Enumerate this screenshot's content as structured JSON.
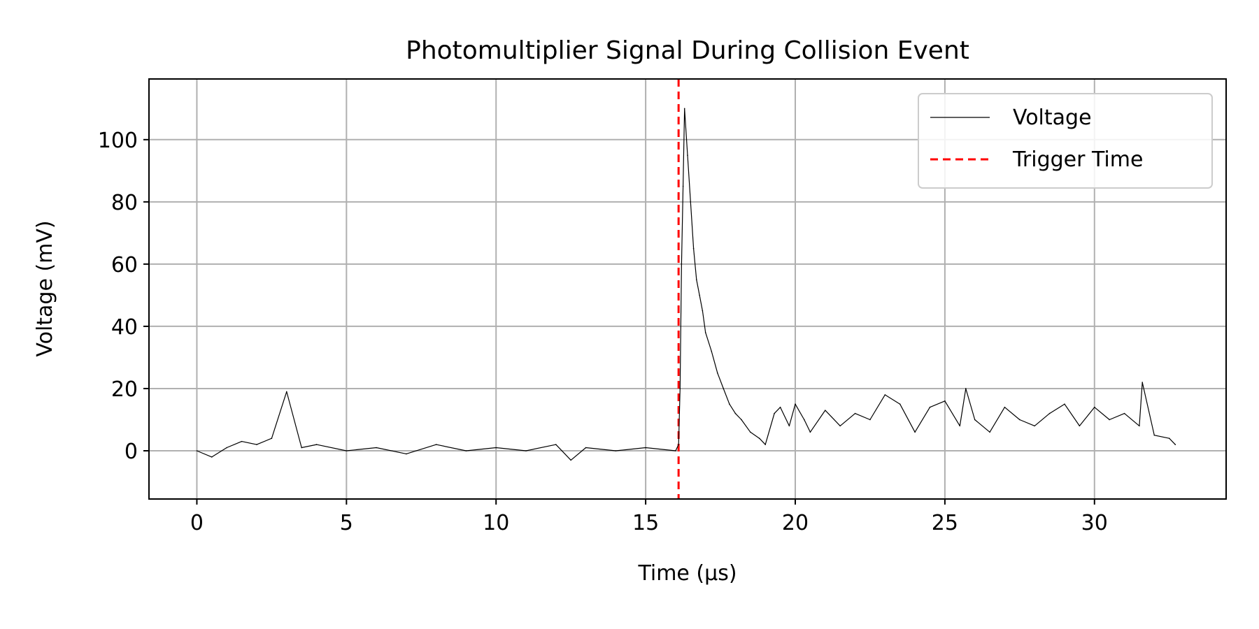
{
  "chart_data": {
    "type": "line",
    "title": "Photomultiplier Signal During Collision Event",
    "xlabel": "Time (μs)",
    "ylabel": "Voltage (mV)",
    "xlim": [
      -1.6,
      34.4
    ],
    "ylim": [
      -15.5,
      119.5
    ],
    "xticks": [
      0,
      5,
      10,
      15,
      20,
      25,
      30
    ],
    "yticks": [
      0,
      20,
      40,
      60,
      80,
      100
    ],
    "xtick_labels": [
      "0",
      "5",
      "10",
      "15",
      "20",
      "25",
      "30"
    ],
    "ytick_labels": [
      "0",
      "20",
      "40",
      "60",
      "80",
      "100"
    ],
    "grid": true,
    "legend": {
      "position": "top-right",
      "entries": [
        {
          "label": "Voltage",
          "style": "line",
          "color": "#000000"
        },
        {
          "label": "Trigger Time",
          "style": "dashed",
          "color": "#ff0000"
        }
      ]
    },
    "series": [
      {
        "name": "Voltage",
        "color": "#000000",
        "x": [
          0,
          0.5,
          1,
          1.5,
          2,
          2.5,
          3,
          3.5,
          4,
          5,
          6,
          7,
          8,
          9,
          10,
          11,
          12,
          12.5,
          13,
          14,
          15,
          16,
          16.1,
          16.15,
          16.2,
          16.25,
          16.3,
          16.4,
          16.5,
          16.6,
          16.7,
          16.8,
          16.9,
          17,
          17.2,
          17.4,
          17.6,
          17.8,
          18,
          18.2,
          18.5,
          18.8,
          19,
          19.3,
          19.5,
          19.8,
          20,
          20.3,
          20.5,
          21,
          21.5,
          22,
          22.5,
          23,
          23.5,
          24,
          24.5,
          25,
          25.5,
          25.7,
          26,
          26.5,
          27,
          27.5,
          28,
          28.5,
          29,
          29.5,
          30,
          30.5,
          31,
          31.5,
          31.6,
          32,
          32.5,
          32.7
        ],
        "y": [
          0,
          -2,
          1,
          3,
          2,
          4,
          19,
          1,
          2,
          0,
          1,
          -1,
          2,
          0,
          1,
          0,
          2,
          -3,
          1,
          0,
          1,
          0,
          2,
          20,
          60,
          85,
          110,
          95,
          80,
          65,
          55,
          50,
          45,
          38,
          32,
          25,
          20,
          15,
          12,
          10,
          6,
          4,
          2,
          12,
          14,
          8,
          15,
          10,
          6,
          13,
          8,
          12,
          10,
          18,
          15,
          6,
          14,
          16,
          8,
          20,
          10,
          6,
          14,
          10,
          8,
          12,
          15,
          8,
          14,
          10,
          12,
          8,
          22,
          5,
          4,
          2
        ]
      }
    ],
    "trigger_time": 16.1
  }
}
